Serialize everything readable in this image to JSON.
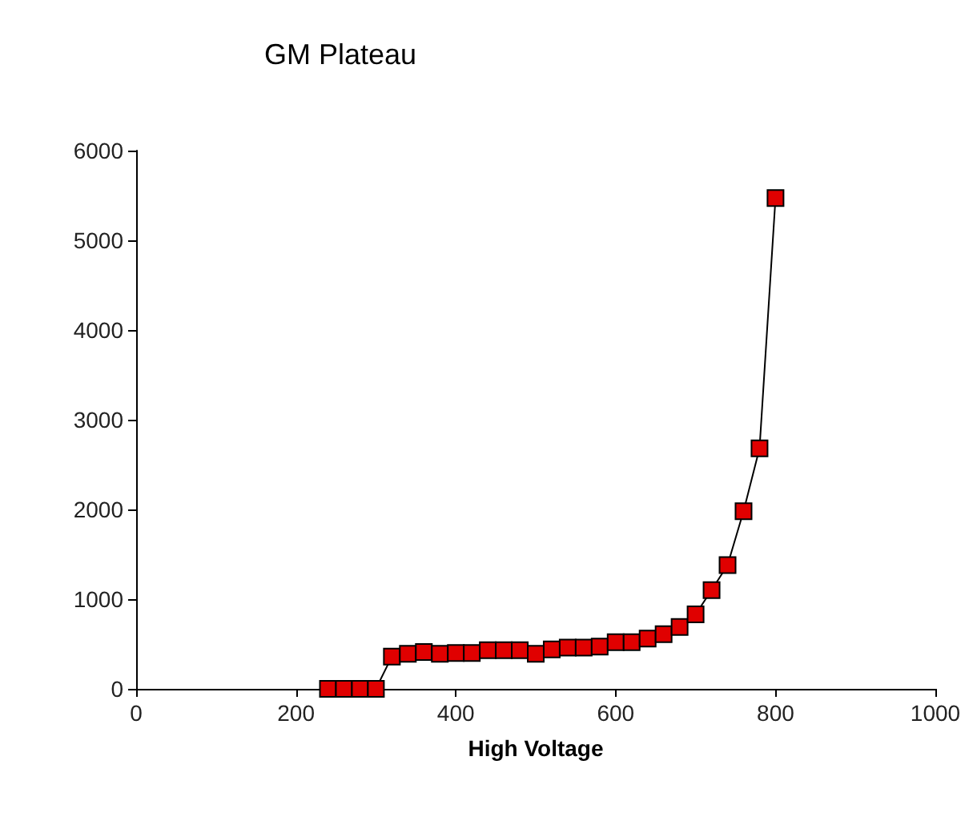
{
  "chart_data": {
    "type": "line",
    "title": "GM Plateau",
    "xlabel": "High Voltage",
    "x": [
      240,
      260,
      280,
      300,
      320,
      340,
      360,
      380,
      400,
      420,
      440,
      460,
      480,
      500,
      520,
      540,
      560,
      580,
      600,
      620,
      640,
      660,
      680,
      700,
      720,
      740,
      760,
      780,
      800
    ],
    "series": [
      {
        "color": "#e00000",
        "values": [
          0,
          0,
          0,
          0,
          360,
          390,
          410,
          390,
          400,
          400,
          430,
          430,
          430,
          390,
          440,
          460,
          460,
          470,
          520,
          520,
          560,
          610,
          690,
          830,
          1100,
          1380,
          1980,
          2680,
          5470
        ]
      }
    ],
    "xlim": [
      0,
      1000
    ],
    "xticks": [
      0,
      200,
      400,
      600,
      800,
      1000
    ],
    "ylim": [
      0,
      6000
    ],
    "yticks": [
      0,
      1000,
      2000,
      3000,
      4000,
      5000,
      6000
    ],
    "grid": false,
    "marker": "square",
    "line_style": "solid"
  }
}
